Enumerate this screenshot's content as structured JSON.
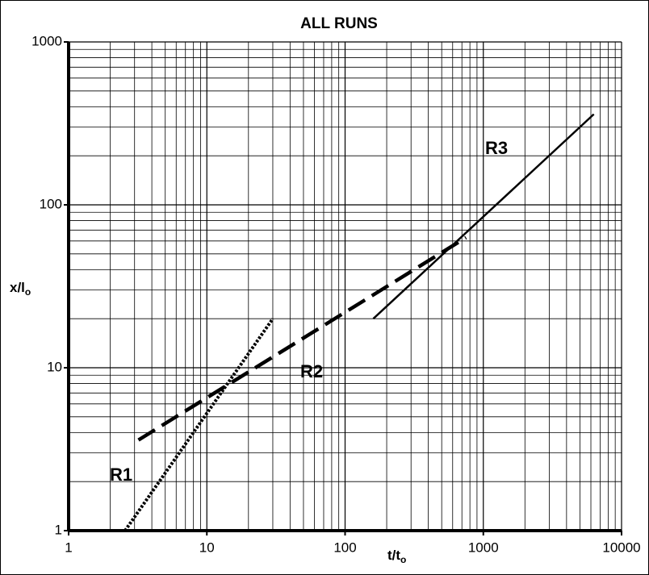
{
  "chart_data": {
    "type": "line",
    "title": "ALL RUNS",
    "x_label": "t/t",
    "x_label_sub": "o",
    "y_label": "x/l",
    "y_label_sub": "o",
    "x_log": true,
    "y_log": true,
    "grid": true,
    "xlim": [
      1,
      10000
    ],
    "xticks": [
      1,
      10,
      100,
      1000,
      10000
    ],
    "ylim": [
      1,
      1000
    ],
    "yticks": [
      1,
      10,
      100,
      1000
    ],
    "series": [
      {
        "name": "R1",
        "color": "#000000",
        "style": "dotted",
        "x": [
          2.56,
          30
        ],
        "values": [
          1,
          20
        ]
      },
      {
        "name": "R2",
        "color": "#000000",
        "style": "dashed",
        "x": [
          3.2,
          750
        ],
        "values": [
          3.6,
          63
        ]
      },
      {
        "name": "R3",
        "color": "#000000",
        "style": "solid",
        "x": [
          160,
          6300
        ],
        "values": [
          20,
          360
        ]
      }
    ]
  }
}
